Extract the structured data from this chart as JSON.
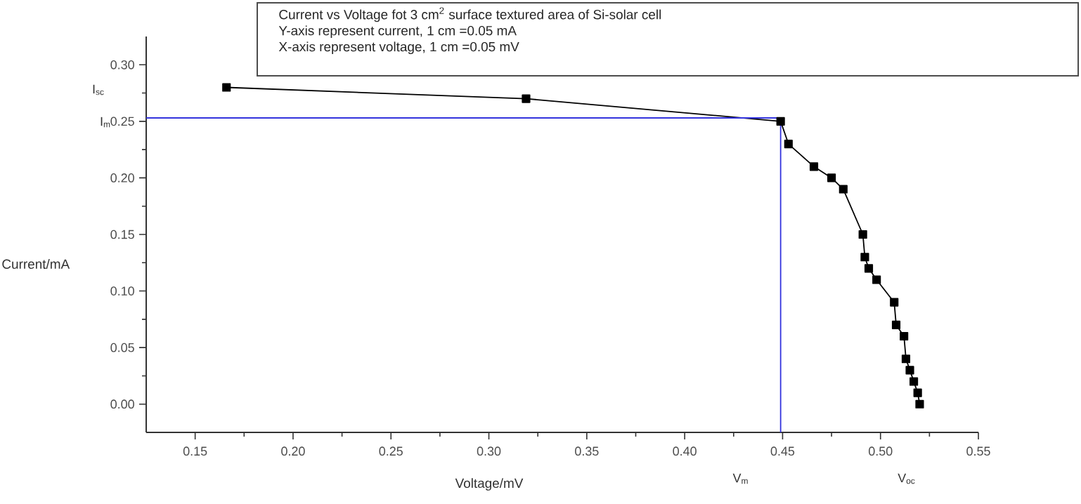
{
  "chart_data": {
    "type": "line",
    "title": "Current vs Voltage fot 3 cm$^{2}$ surface textured area of Si-solar cell",
    "xlabel": "Voltage/mV",
    "ylabel": "Current/mA",
    "xlim": [
      0.125,
      0.55
    ],
    "ylim": [
      -0.025,
      0.325
    ],
    "xticks": [
      0.15,
      {
        "value": 0.2,
        "label": "0.20"
      },
      0.25,
      {
        "value": 0.3,
        "label": "0.30"
      },
      0.35,
      {
        "value": 0.4,
        "label": "0.40"
      },
      0.45,
      {
        "value": 0.5,
        "label": "0.50"
      },
      0.55
    ],
    "yticks": [
      {
        "value": 0,
        "label": "0.00"
      },
      0.05,
      {
        "value": 0.1,
        "label": "0.10"
      },
      0.15,
      {
        "value": 0.2,
        "label": "0.20"
      },
      0.25,
      {
        "value": 0.3,
        "label": "0.30"
      }
    ],
    "series": [
      {
        "color": "#000000",
        "marker": "square",
        "x": [
          0.166,
          0.319,
          0.449,
          0.453,
          0.466,
          0.475,
          0.481,
          0.491,
          0.492,
          0.494,
          0.498,
          0.507,
          0.508,
          0.512,
          0.513,
          0.515,
          0.517,
          0.519,
          0.52
        ],
        "values": [
          0.28,
          0.27,
          0.25,
          0.23,
          0.21,
          0.2,
          0.19,
          0.15,
          0.13,
          0.12,
          0.11,
          0.09,
          0.07,
          0.06,
          0.04,
          0.03,
          0.02,
          0.01,
          0.0
        ]
      },
      {
        "color": "#3333dd",
        "marker": "none",
        "x": [
          0.125,
          0.449,
          0.449
        ],
        "values": [
          0.253,
          0.253,
          -0.025
        ]
      }
    ],
    "annotations": [
      "Y-axis represent current, 1 cm =0.05 mA",
      "X-axis represent voltage, 1 cm =0.05 mV",
      "I$_{sc}$",
      "I$_{m}$",
      "V$_{m}$",
      "V$_{oc}$"
    ]
  }
}
